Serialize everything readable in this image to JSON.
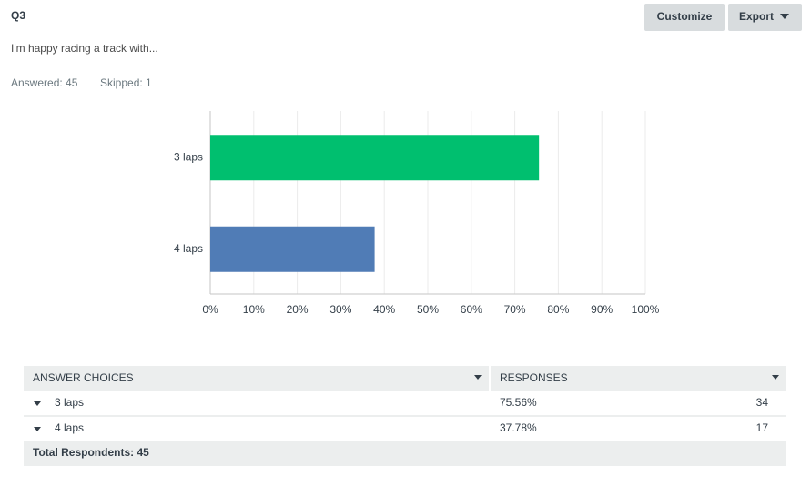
{
  "header": {
    "question_number": "Q3",
    "title": "I'm happy racing a track with...",
    "answered": "Answered: 45",
    "skipped": "Skipped: 1",
    "buttons": [
      "Customize",
      "Export"
    ]
  },
  "chart_data": {
    "type": "bar",
    "orientation": "horizontal",
    "categories": [
      "3 laps",
      "4 laps"
    ],
    "values": [
      75.56,
      37.78
    ],
    "colors": [
      "#00bf6f",
      "#507cb6"
    ],
    "xlim": [
      0,
      100
    ],
    "xticks": [
      {
        "value": 0,
        "label": "0%"
      },
      {
        "value": 10,
        "label": "10%"
      },
      {
        "value": 20,
        "label": "20%"
      },
      {
        "value": 30,
        "label": "30%"
      },
      {
        "value": 40,
        "label": "40%"
      },
      {
        "value": 50,
        "label": "50%"
      },
      {
        "value": 60,
        "label": "60%"
      },
      {
        "value": 70,
        "label": "70%"
      },
      {
        "value": 80,
        "label": "80%"
      },
      {
        "value": 90,
        "label": "90%"
      },
      {
        "value": 100,
        "label": "100%"
      }
    ],
    "grid": true
  },
  "table": {
    "columns": [
      "ANSWER CHOICES",
      "RESPONSES"
    ],
    "rows": [
      [
        "3 laps",
        "75.56%",
        "34"
      ],
      [
        "4 laps",
        "37.78%",
        "17"
      ]
    ],
    "footer": "Total Respondents: 45"
  }
}
